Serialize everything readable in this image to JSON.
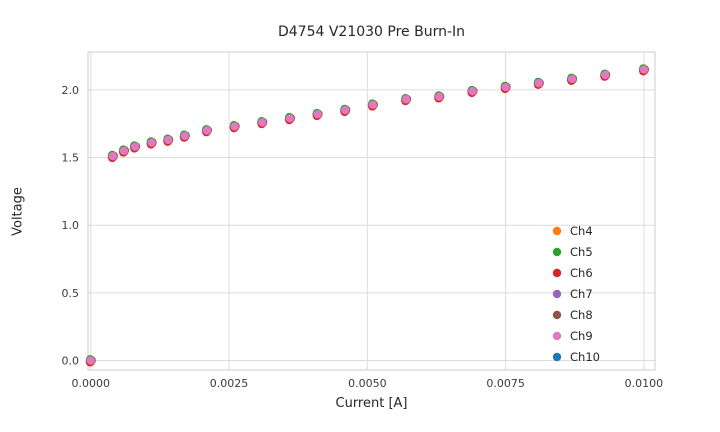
{
  "chart_data": {
    "type": "scatter",
    "title": "D4754 V21030 Pre Burn-In",
    "xlabel": "Current [A]",
    "ylabel": "Voltage",
    "xlim": [
      -5e-05,
      0.0102
    ],
    "ylim": [
      -0.07,
      2.28
    ],
    "x_ticks": [
      "0.0000",
      "0.0025",
      "0.0050",
      "0.0075",
      "0.0100"
    ],
    "x_tick_values": [
      0,
      0.0025,
      0.005,
      0.0075,
      0.01
    ],
    "y_ticks": [
      "0.0",
      "0.5",
      "1.0",
      "1.5",
      "2.0"
    ],
    "y_tick_values": [
      0,
      0.5,
      1.0,
      1.5,
      2.0
    ],
    "grid": true,
    "legend_position": "lower right",
    "x": [
      0.0,
      0.0004,
      0.0006,
      0.0008,
      0.0011,
      0.0014,
      0.0017,
      0.0021,
      0.0026,
      0.0031,
      0.0036,
      0.0041,
      0.0046,
      0.0051,
      0.0057,
      0.0063,
      0.0069,
      0.0075,
      0.0081,
      0.0087,
      0.0093,
      0.01
    ],
    "shared_y": [
      0.0,
      1.51,
      1.55,
      1.58,
      1.61,
      1.63,
      1.66,
      1.7,
      1.73,
      1.76,
      1.79,
      1.82,
      1.85,
      1.89,
      1.93,
      1.95,
      1.99,
      2.02,
      2.05,
      2.08,
      2.11,
      2.15
    ],
    "overlap_note": "All channels plot nearly identical curves; Ch9 (pink) is drawn on top",
    "series": [
      {
        "name": "Ch4",
        "color": "#ff7f0e"
      },
      {
        "name": "Ch5",
        "color": "#2ca02c"
      },
      {
        "name": "Ch6",
        "color": "#d62728"
      },
      {
        "name": "Ch7",
        "color": "#9467bd"
      },
      {
        "name": "Ch8",
        "color": "#8c564b"
      },
      {
        "name": "Ch9",
        "color": "#e377c2"
      },
      {
        "name": "Ch10",
        "color": "#1f77b4"
      }
    ],
    "colors": {
      "grid": "#dcdcdc",
      "frame": "#cccccc",
      "tick_text": "#3b3b3b",
      "legend_text": "#262626"
    }
  }
}
